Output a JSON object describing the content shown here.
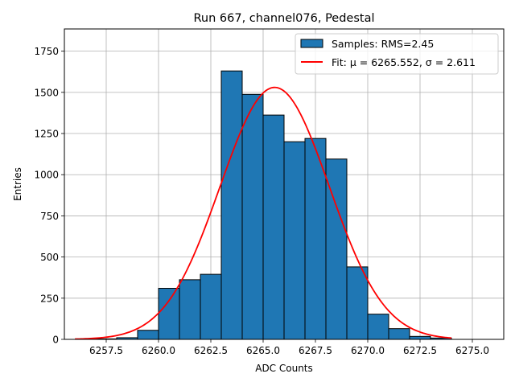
{
  "chart_data": {
    "type": "bar",
    "title": "Run 667, channel076, Pedestal",
    "xlabel": "ADC Counts",
    "ylabel": "Entries",
    "xlim": [
      6255.5,
      6276.5
    ],
    "ylim": [
      0,
      1885
    ],
    "grid": true,
    "legend_position": "top-right",
    "xticks": [
      6257.5,
      6260.0,
      6262.5,
      6265.0,
      6267.5,
      6270.0,
      6272.5,
      6275.0
    ],
    "xtick_labels": [
      "6257.5",
      "6260.0",
      "6262.5",
      "6265.0",
      "6267.5",
      "6270.0",
      "6272.5",
      "6275.0"
    ],
    "yticks": [
      0,
      250,
      500,
      750,
      1000,
      1250,
      1500,
      1750
    ],
    "ytick_labels": [
      "0",
      "250",
      "500",
      "750",
      "1000",
      "1250",
      "1500",
      "1750"
    ],
    "histogram": {
      "name": "Samples: RMS=2.45",
      "color": "#1f77b4",
      "edgecolor": "#000000",
      "bins": [
        {
          "x0": 6257.0,
          "x1": 6258.0,
          "count": 3
        },
        {
          "x0": 6258.0,
          "x1": 6259.0,
          "count": 10
        },
        {
          "x0": 6259.0,
          "x1": 6260.0,
          "count": 55
        },
        {
          "x0": 6260.0,
          "x1": 6261.0,
          "count": 310
        },
        {
          "x0": 6261.0,
          "x1": 6262.0,
          "count": 362
        },
        {
          "x0": 6262.0,
          "x1": 6263.0,
          "count": 395
        },
        {
          "x0": 6263.0,
          "x1": 6264.0,
          "count": 1630
        },
        {
          "x0": 6264.0,
          "x1": 6265.0,
          "count": 1488
        },
        {
          "x0": 6265.0,
          "x1": 6266.0,
          "count": 1362
        },
        {
          "x0": 6266.0,
          "x1": 6267.0,
          "count": 1200
        },
        {
          "x0": 6267.0,
          "x1": 6268.0,
          "count": 1220
        },
        {
          "x0": 6268.0,
          "x1": 6269.0,
          "count": 1095
        },
        {
          "x0": 6269.0,
          "x1": 6270.0,
          "count": 440
        },
        {
          "x0": 6270.0,
          "x1": 6271.0,
          "count": 153
        },
        {
          "x0": 6271.0,
          "x1": 6272.0,
          "count": 65
        },
        {
          "x0": 6272.0,
          "x1": 6273.0,
          "count": 18
        },
        {
          "x0": 6273.0,
          "x1": 6274.0,
          "count": 8
        }
      ]
    },
    "fit": {
      "name": "Fit: μ = 6265.552, σ = 2.611",
      "color": "#ff0000",
      "mu": 6265.552,
      "sigma": 2.611,
      "amplitude": 1530,
      "x_range": [
        6256.0,
        6274.0
      ]
    }
  }
}
